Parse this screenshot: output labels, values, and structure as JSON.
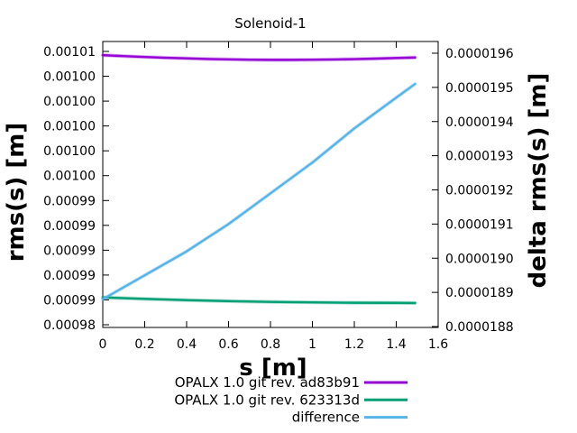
{
  "title": "Solenoid-1",
  "colors": {
    "series1": "#9400d3",
    "series2": "#009e73",
    "series3": "#56b4e9",
    "frame": "#000000",
    "text": "#000000",
    "background": "#ffffff"
  },
  "axes": {
    "x": {
      "label": "s [m]",
      "min": 0,
      "max": 1.6,
      "ticks": [
        {
          "label": "0",
          "value": 0.0
        },
        {
          "label": "0.2",
          "value": 0.2
        },
        {
          "label": "0.4",
          "value": 0.4
        },
        {
          "label": "0.6",
          "value": 0.6
        },
        {
          "label": "0.8",
          "value": 0.8
        },
        {
          "label": "1",
          "value": 1.0
        },
        {
          "label": "1.2",
          "value": 1.2
        },
        {
          "label": "1.4",
          "value": 1.4
        },
        {
          "label": "1.6",
          "value": 1.6
        }
      ]
    },
    "y1": {
      "label": "rms(s) [m]",
      "ticks": [
        {
          "label": "0.00101",
          "value": 0.001006
        },
        {
          "label": "0.00100",
          "value": 0.001004
        },
        {
          "label": "0.00100",
          "value": 0.001002
        },
        {
          "label": "0.00100",
          "value": 0.001
        },
        {
          "label": "0.00100",
          "value": 0.000998
        },
        {
          "label": "0.00100",
          "value": 0.000996
        },
        {
          "label": "0.00099",
          "value": 0.000994
        },
        {
          "label": "0.00099",
          "value": 0.000992
        },
        {
          "label": "0.00099",
          "value": 0.00099
        },
        {
          "label": "0.00099",
          "value": 0.000988
        },
        {
          "label": "0.00099",
          "value": 0.000986
        },
        {
          "label": "0.00098",
          "value": 0.000984
        }
      ]
    },
    "y2": {
      "label": "delta rms(s) [m]",
      "ticks": [
        {
          "label": "0.0000196",
          "value": 1.96e-05
        },
        {
          "label": "0.0000195",
          "value": 1.95e-05
        },
        {
          "label": "0.0000194",
          "value": 1.94e-05
        },
        {
          "label": "0.0000193",
          "value": 1.93e-05
        },
        {
          "label": "0.0000192",
          "value": 1.92e-05
        },
        {
          "label": "0.0000191",
          "value": 1.91e-05
        },
        {
          "label": "0.0000190",
          "value": 1.9e-05
        },
        {
          "label": "0.0000189",
          "value": 1.89e-05
        },
        {
          "label": "0.0000188",
          "value": 1.88e-05
        }
      ]
    }
  },
  "chart_data": {
    "type": "line",
    "title": "Solenoid-1",
    "xlabel": "s [m]",
    "ylabel": "rms(s) [m]",
    "y2label": "delta rms(s) [m]",
    "xlim": [
      0,
      1.6
    ],
    "y1_tick_range": [
      0.000984,
      0.001006
    ],
    "y2_tick_range": [
      1.88e-05,
      1.96e-05
    ],
    "grid": false,
    "legend_position": "below-plot-right",
    "series": [
      {
        "name": "OPALX 1.0 git rev. ad83b91",
        "axis": "y1",
        "color": "#9400d3",
        "x": [
          0,
          0.1,
          0.2,
          0.3,
          0.4,
          0.5,
          0.6,
          0.7,
          0.8,
          0.9,
          1.0,
          1.1,
          1.2,
          1.3,
          1.4,
          1.49
        ],
        "y": [
          0.0010057,
          0.00100562,
          0.00100555,
          0.00100549,
          0.00100544,
          0.00100539,
          0.00100536,
          0.00100533,
          0.00100532,
          0.00100532,
          0.00100533,
          0.00100535,
          0.00100538,
          0.00100542,
          0.00100547,
          0.00100551
        ]
      },
      {
        "name": "OPALX 1.0 git rev. 623313d",
        "axis": "y1",
        "color": "#009e73",
        "x": [
          0,
          0.2,
          0.4,
          0.6,
          0.8,
          1.0,
          1.2,
          1.4,
          1.49
        ],
        "y": [
          0.0009862,
          0.00098608,
          0.00098598,
          0.0009859,
          0.00098584,
          0.0009858,
          0.00098577,
          0.00098576,
          0.00098575
        ]
      },
      {
        "name": "difference",
        "axis": "y2",
        "color": "#56b4e9",
        "x": [
          0,
          0.2,
          0.4,
          0.6,
          0.8,
          1.0,
          1.2,
          1.4,
          1.49
        ],
        "y": [
          1.888e-05,
          1.895e-05,
          1.902e-05,
          1.91e-05,
          1.919e-05,
          1.928e-05,
          1.938e-05,
          1.947e-05,
          1.951e-05
        ]
      }
    ]
  }
}
